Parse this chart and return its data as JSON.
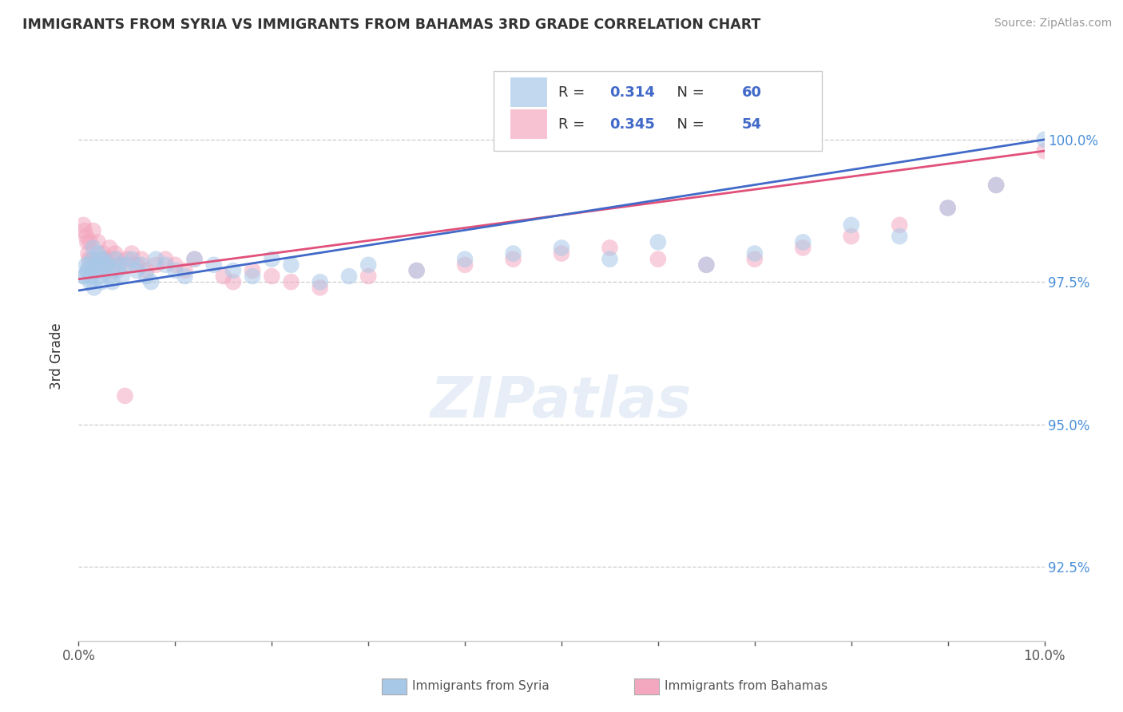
{
  "title": "IMMIGRANTS FROM SYRIA VS IMMIGRANTS FROM BAHAMAS 3RD GRADE CORRELATION CHART",
  "source": "Source: ZipAtlas.com",
  "ylabel": "3rd Grade",
  "y_ticks": [
    92.5,
    95.0,
    97.5,
    100.0
  ],
  "x_range": [
    0.0,
    10.0
  ],
  "y_range": [
    91.2,
    101.2
  ],
  "legend_syria": {
    "r": "0.314",
    "n": "60"
  },
  "legend_bahamas": {
    "r": "0.345",
    "n": "54"
  },
  "syria_color": "#a8c8e8",
  "bahamas_color": "#f4a8c0",
  "trendline_syria_color": "#4169c8",
  "trendline_bahamas_color": "#e0507a",
  "background_color": "#ffffff",
  "watermark": "ZIPatlas",
  "syria_x": [
    0.05,
    0.08,
    0.1,
    0.12,
    0.14,
    0.15,
    0.16,
    0.18,
    0.2,
    0.22,
    0.24,
    0.25,
    0.28,
    0.3,
    0.32,
    0.35,
    0.38,
    0.4,
    0.42,
    0.45,
    0.5,
    0.55,
    0.6,
    0.65,
    0.7,
    0.75,
    0.8,
    0.9,
    1.0,
    1.1,
    1.2,
    1.4,
    1.6,
    1.8,
    2.0,
    2.2,
    2.5,
    2.8,
    3.0,
    3.5,
    4.0,
    4.5,
    5.0,
    5.5,
    6.0,
    6.5,
    7.0,
    7.5,
    8.0,
    8.5,
    9.0,
    9.5,
    10.0,
    0.06,
    0.09,
    0.11,
    0.13,
    0.17,
    0.23,
    0.27
  ],
  "syria_y": [
    97.6,
    97.8,
    97.7,
    97.5,
    97.9,
    98.1,
    97.4,
    97.8,
    98.0,
    97.6,
    97.5,
    97.9,
    97.7,
    97.8,
    97.6,
    97.5,
    97.9,
    97.7,
    97.8,
    97.6,
    97.8,
    97.9,
    97.7,
    97.8,
    97.6,
    97.5,
    97.9,
    97.8,
    97.7,
    97.6,
    97.9,
    97.8,
    97.7,
    97.6,
    97.9,
    97.8,
    97.5,
    97.6,
    97.8,
    97.7,
    97.9,
    98.0,
    98.1,
    97.9,
    98.2,
    97.8,
    98.0,
    98.2,
    98.5,
    98.3,
    98.8,
    99.2,
    100.0,
    97.6,
    97.7,
    97.8,
    97.6,
    97.7,
    97.9,
    97.8
  ],
  "bahamas_x": [
    0.05,
    0.08,
    0.1,
    0.12,
    0.14,
    0.15,
    0.18,
    0.2,
    0.22,
    0.25,
    0.28,
    0.3,
    0.32,
    0.35,
    0.38,
    0.4,
    0.45,
    0.5,
    0.55,
    0.6,
    0.65,
    0.7,
    0.8,
    0.9,
    1.0,
    1.1,
    1.2,
    1.5,
    1.6,
    1.8,
    2.0,
    2.2,
    2.5,
    3.0,
    3.5,
    4.0,
    4.5,
    5.0,
    5.5,
    6.0,
    6.5,
    7.0,
    7.5,
    8.0,
    8.5,
    9.0,
    9.5,
    10.0,
    0.06,
    0.09,
    0.11,
    0.16,
    0.27,
    0.48
  ],
  "bahamas_y": [
    98.5,
    98.3,
    98.0,
    98.2,
    97.9,
    98.4,
    97.8,
    98.2,
    97.7,
    98.0,
    97.9,
    97.8,
    98.1,
    97.7,
    98.0,
    97.9,
    97.8,
    97.9,
    98.0,
    97.8,
    97.9,
    97.7,
    97.8,
    97.9,
    97.8,
    97.7,
    97.9,
    97.6,
    97.5,
    97.7,
    97.6,
    97.5,
    97.4,
    97.6,
    97.7,
    97.8,
    97.9,
    98.0,
    98.1,
    97.9,
    97.8,
    97.9,
    98.1,
    98.3,
    98.5,
    98.8,
    99.2,
    99.8,
    98.4,
    98.2,
    97.9,
    97.8,
    97.9,
    95.5
  ],
  "trendline_syria": [
    97.35,
    100.0
  ],
  "trendline_bahamas": [
    97.55,
    99.8
  ]
}
